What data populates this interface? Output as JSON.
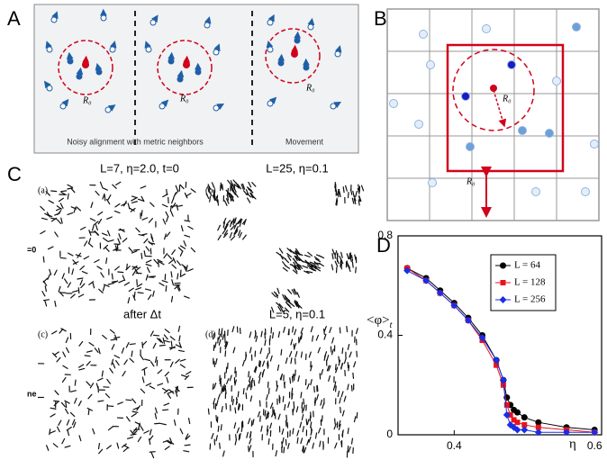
{
  "panels": {
    "a": {
      "label": "A",
      "caption_left": "Noisy alignment with metric neighbors",
      "caption_right": "Movement",
      "radius_labels": [
        "R₀",
        "R₀",
        "R₀"
      ]
    },
    "b": {
      "label": "B",
      "radius_labels": [
        "R₀",
        "R₀"
      ]
    },
    "c": {
      "label": "C",
      "titles": [
        "L=7, η=2.0, t=0",
        "L=25, η=0.1",
        "after Δt",
        "L=5, η=0.1"
      ],
      "sublabels": [
        "(a)",
        "(b)",
        "(c)",
        "(d)"
      ],
      "cut_labels": [
        "=0",
        "ne"
      ]
    },
    "d": {
      "label": "D"
    }
  },
  "chart_data": {
    "type": "line",
    "xlabel": "η",
    "ylabel": "<φ>",
    "ylabel_subscript": "t",
    "x": [
      0.333,
      0.36,
      0.38,
      0.4,
      0.42,
      0.44,
      0.46,
      0.47,
      0.475,
      0.48,
      0.485,
      0.49,
      0.5,
      0.52,
      0.56,
      0.6
    ],
    "series": [
      {
        "name": "L = 64",
        "color": "#000000",
        "marker": "circle",
        "values": [
          0.67,
          0.63,
          0.58,
          0.53,
          0.47,
          0.4,
          0.3,
          0.22,
          0.15,
          0.12,
          0.1,
          0.09,
          0.07,
          0.05,
          0.03,
          0.02
        ]
      },
      {
        "name": "L = 128",
        "color": "#e8141b",
        "marker": "square",
        "values": [
          0.67,
          0.62,
          0.57,
          0.52,
          0.46,
          0.38,
          0.28,
          0.2,
          0.12,
          0.08,
          0.06,
          0.05,
          0.04,
          0.03,
          0.02,
          0.01
        ]
      },
      {
        "name": "L = 256",
        "color": "#1a2ee8",
        "marker": "diamond",
        "values": [
          0.66,
          0.62,
          0.57,
          0.52,
          0.46,
          0.39,
          0.3,
          0.22,
          0.08,
          0.04,
          0.03,
          0.02,
          0.02,
          0.01,
          0.01,
          0.01
        ]
      }
    ],
    "xlim": [
      0.32,
      0.61
    ],
    "ylim": [
      0,
      0.8
    ],
    "xticks": [
      0.4,
      0.6
    ],
    "yticks": [
      0,
      0.4,
      0.8
    ],
    "legend": "upper right"
  }
}
